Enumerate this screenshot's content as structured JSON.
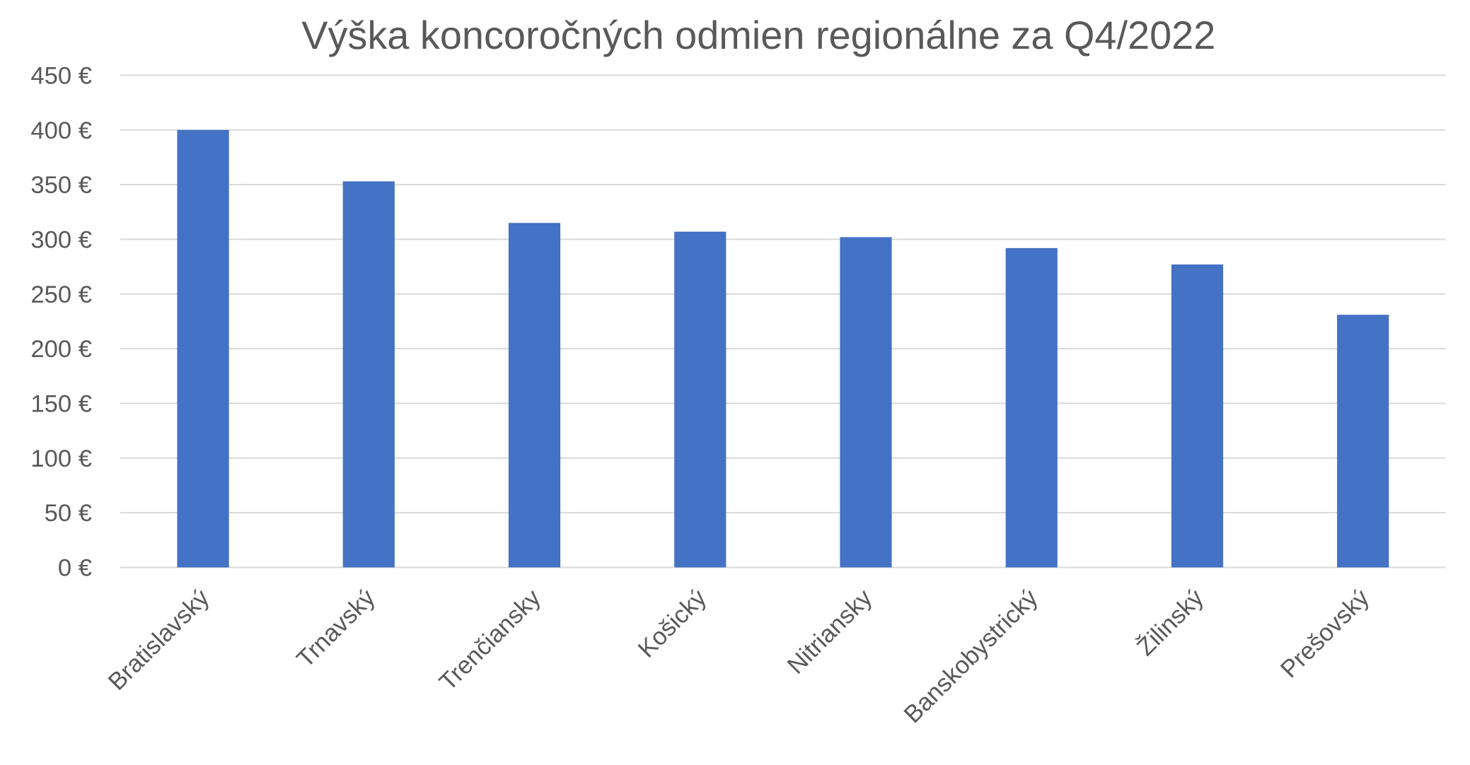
{
  "chart_data": {
    "type": "bar",
    "title": "Výška koncoročných odmien regionálne za Q4/2022",
    "xlabel": "",
    "ylabel": "",
    "categories": [
      "Bratislavský",
      "Trnavský",
      "Trenčiansky",
      "Košický",
      "Nitriansky",
      "Banskobystrický",
      "Žilinský",
      "Prešovský"
    ],
    "values": [
      400,
      353,
      315,
      307,
      302,
      292,
      277,
      231
    ],
    "ylim": [
      0,
      450
    ],
    "yticks": [
      0,
      50,
      100,
      150,
      200,
      250,
      300,
      350,
      400,
      450
    ],
    "ytick_labels": [
      "0 €",
      "50 €",
      "100 €",
      "150 €",
      "200 €",
      "250 €",
      "300 €",
      "350 €",
      "400 €",
      "450 €"
    ],
    "grid": true,
    "legend": "none",
    "bar_color": "#4472c4"
  }
}
